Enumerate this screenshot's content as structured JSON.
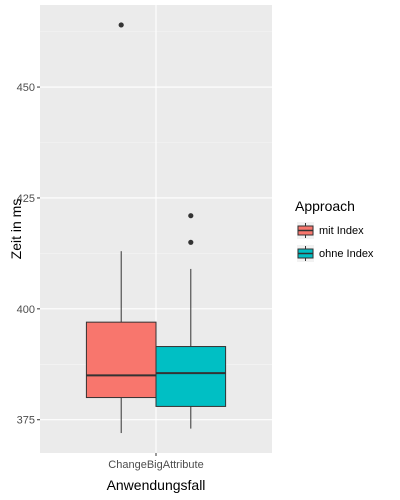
{
  "chart_data": {
    "type": "boxplot",
    "xlabel": "Anwendungsfall",
    "ylabel": "Zeit in ms",
    "categories": [
      "ChangeBigAttribute"
    ],
    "ylim": [
      367.5,
      468.5
    ],
    "yticks": [
      375,
      400,
      425,
      450
    ],
    "ytick_labels": [
      "375",
      "400",
      "425",
      "450"
    ],
    "grid": true,
    "legend": {
      "title": "Approach",
      "position": "right",
      "items": [
        {
          "label": "mit Index",
          "color": "#F8766D"
        },
        {
          "label": "ohne Index",
          "color": "#00BFC4"
        }
      ]
    },
    "series": [
      {
        "name": "mit Index",
        "category": "ChangeBigAttribute",
        "color": "#F8766D",
        "whisker_low": 372,
        "q1": 380,
        "median": 385,
        "q3": 397,
        "whisker_high": 413,
        "outliers": [
          464
        ]
      },
      {
        "name": "ohne Index",
        "category": "ChangeBigAttribute",
        "color": "#00BFC4",
        "whisker_low": 373,
        "q1": 378,
        "median": 385.5,
        "q3": 391.5,
        "whisker_high": 409,
        "outliers": [
          415,
          421
        ]
      }
    ]
  }
}
